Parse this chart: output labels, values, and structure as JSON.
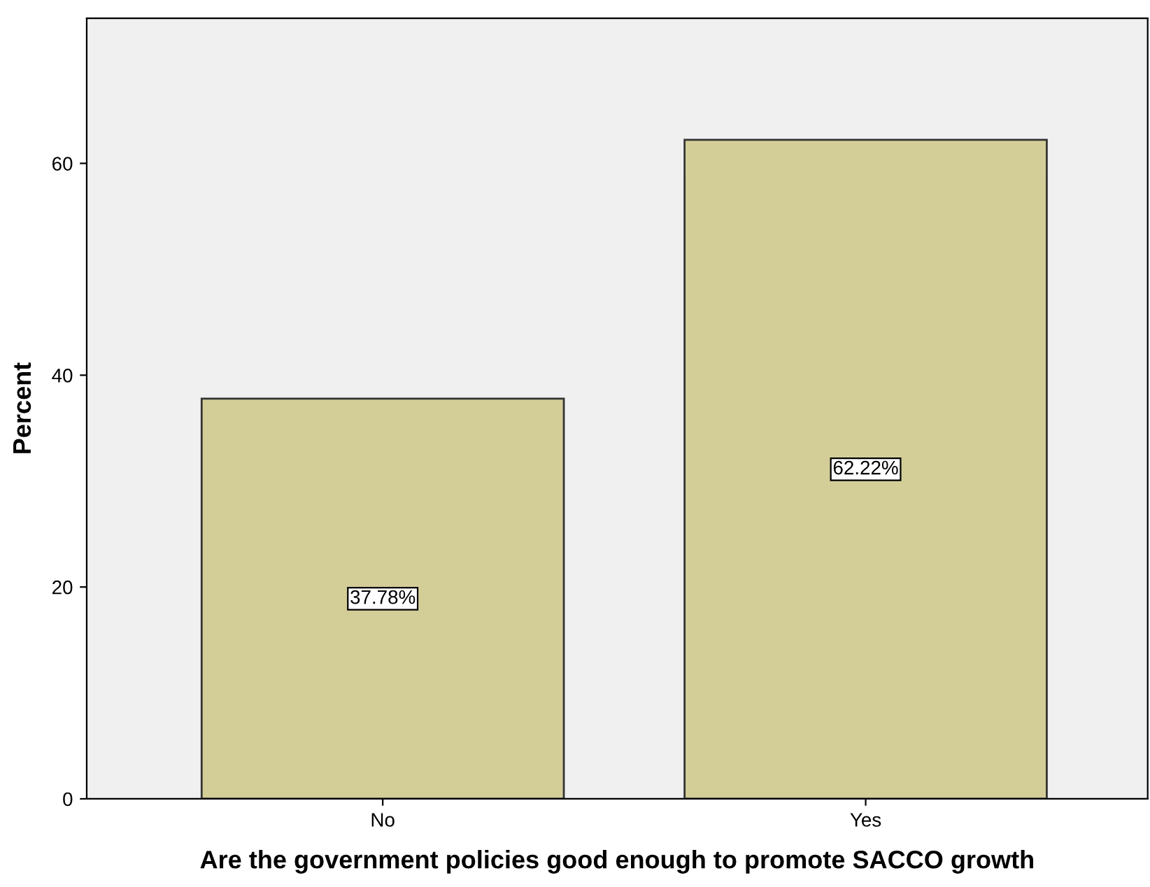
{
  "chart_data": {
    "type": "bar",
    "xlabel": "Are the government policies good enough to promote SACCO growth",
    "ylabel": "Percent",
    "categories": [
      "No",
      "Yes"
    ],
    "values": [
      37.78,
      62.22
    ],
    "value_labels": [
      "37.78%",
      "62.22%"
    ],
    "color": "#d3ce97",
    "ylim": [
      0,
      73.7
    ],
    "yticks": [
      0,
      20,
      40,
      60
    ],
    "grid": false
  }
}
